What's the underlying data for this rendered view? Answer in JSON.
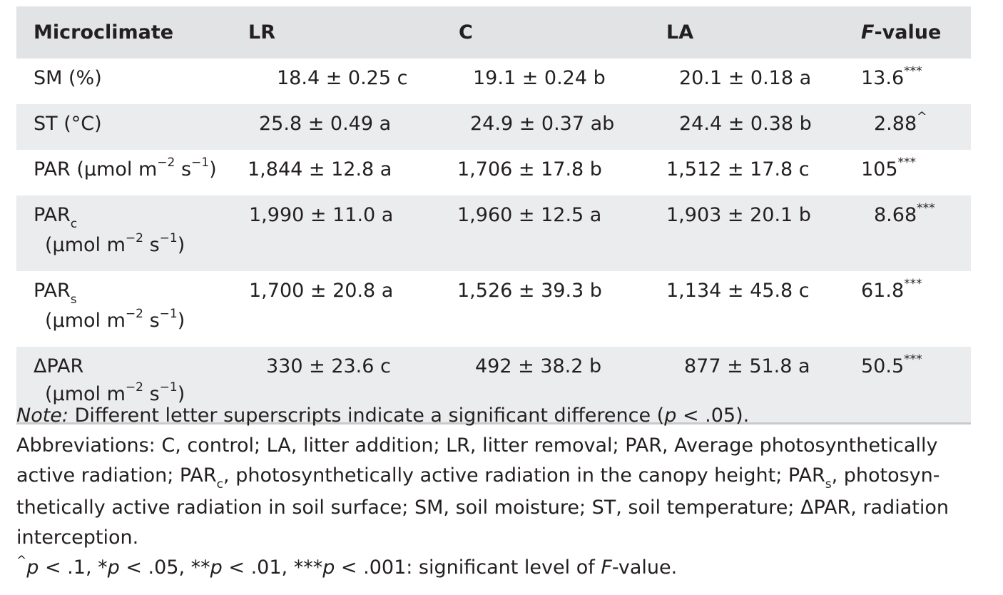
{
  "header": {
    "col0": "Microclimate",
    "col1": "LR",
    "col2": "C",
    "col3": "LA",
    "col4_italic": "F",
    "col4_rest": "-value"
  },
  "rows": [
    {
      "label": "SM (%)",
      "lr": "18.4 ± 0.25 c",
      "c": "19.1 ± 0.24 b",
      "la": "20.1 ± 0.18 a",
      "f": "13.6",
      "sig": "***"
    },
    {
      "label": "ST (°C)",
      "lr": "25.8 ± 0.49 a",
      "c": "24.9 ± 0.37 ab",
      "la": "24.4 ± 0.38 b",
      "f": "2.88",
      "sig": "^"
    },
    {
      "label_main": "PAR (µmol m",
      "lr": "1,844 ± 12.8 a",
      "c": "1,706 ± 17.8 b",
      "la": "1,512 ± 17.8 c",
      "f": "105",
      "sig": "***"
    },
    {
      "label_main": "PAR",
      "label_sub": "c",
      "lr": "1,990 ± 11.0 a",
      "c": "1,960 ± 12.5 a",
      "la": "1,903 ± 20.1 b",
      "f": "8.68",
      "sig": "***"
    },
    {
      "label_main": "PAR",
      "label_sub": "s",
      "lr": "1,700 ± 20.8 a",
      "c": "1,526 ± 39.3 b",
      "la": "1,134 ± 45.8 c",
      "f": "61.8",
      "sig": "***"
    },
    {
      "label_main": "ΔPAR",
      "lr": "330 ± 23.6 c",
      "c": "492 ± 38.2 b",
      "la": "877 ± 51.8 a",
      "f": "50.5",
      "sig": "***"
    }
  ],
  "unit": {
    "open": "(µmol m",
    "exp1": "−2",
    "mid": " s",
    "exp2": "−1",
    "close": ")"
  },
  "notes": {
    "note_label": "Note:",
    "note_a": " Different letter superscripts indicate a significant difference (",
    "note_p": "p",
    "note_b": " < .05).",
    "abbr_a": "Abbreviations: C, control; LA, litter addition; LR, litter removal; PAR, Average photosynthetically active radiation; PAR",
    "abbr_sub_c": "c",
    "abbr_b": ", photosynthetically active radiation in the canopy height; PAR",
    "abbr_sub_s": "s",
    "abbr_c": ", photosyn-thetically active radiation in soil surface; SM, soil moisture; ST, soil temperature; ΔPAR, radiation interception.",
    "sig_caret": "^",
    "sig_p": "p",
    "sig_a": " < .1, *",
    "sig_b": " < .05, **",
    "sig_c": " < .01, ***",
    "sig_d": " < .001: significant level of ",
    "sig_F": "F",
    "sig_e": "-value."
  }
}
